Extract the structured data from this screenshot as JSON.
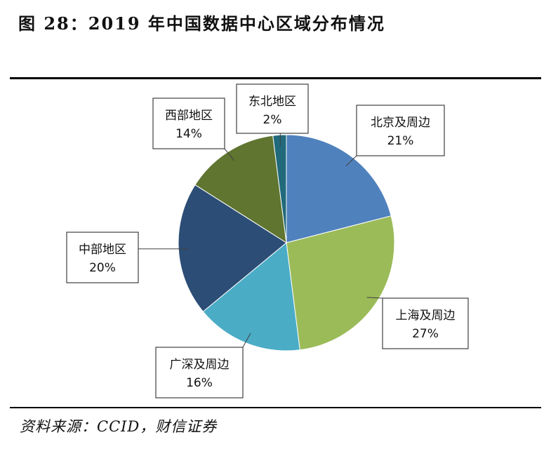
{
  "figure": {
    "title": "图 28：2019 年中国数据中心区域分布情况",
    "source": "资料来源：CCID，财信证券"
  },
  "chart_data": {
    "type": "pie",
    "title": "",
    "start_angle_deg": 0,
    "direction": "clockwise",
    "slices": [
      {
        "name": "北京及周边",
        "value": 21,
        "label": "21%",
        "color": "#4F81BD"
      },
      {
        "name": "上海及周边",
        "value": 27,
        "label": "27%",
        "color": "#9BBB59"
      },
      {
        "name": "广深及周边",
        "value": 16,
        "label": "16%",
        "color": "#4BACC6"
      },
      {
        "name": "中部地区",
        "value": 20,
        "label": "20%",
        "color": "#2C4D75"
      },
      {
        "name": "西部地区",
        "value": 14,
        "label": "14%",
        "color": "#5F7530"
      },
      {
        "name": "东北地区",
        "value": 2,
        "label": "2%",
        "color": "#216A7B"
      }
    ]
  }
}
